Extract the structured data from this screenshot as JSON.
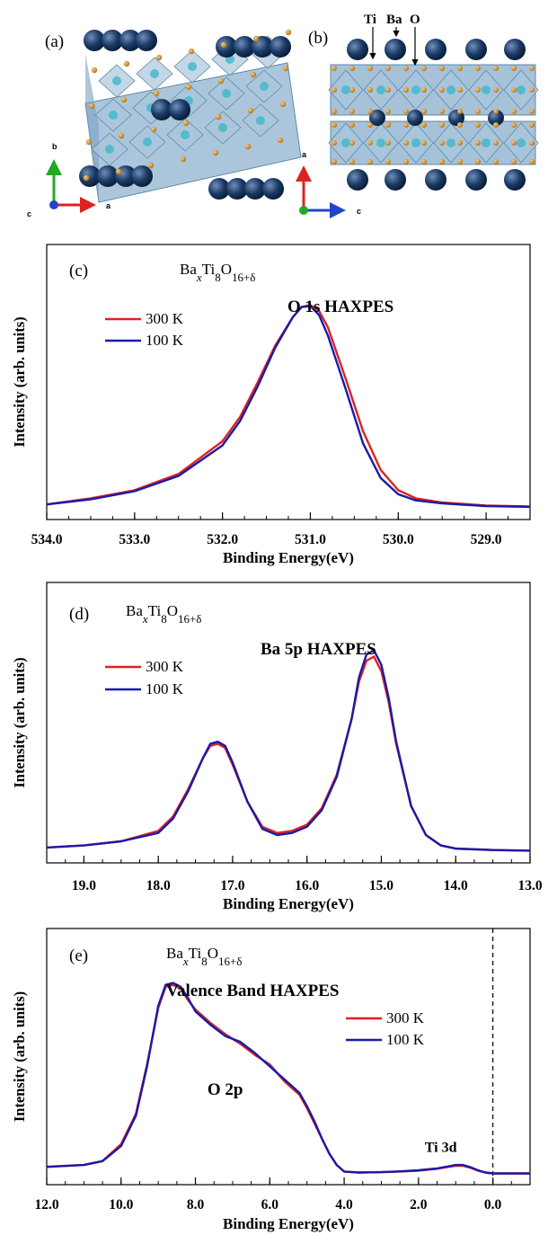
{
  "structure": {
    "panel_a": {
      "label": "(a)",
      "axes": {
        "b": "b",
        "a": "a",
        "c": "c"
      },
      "colors": {
        "ba": "#1a3a66",
        "ti_octahedra": "#8fb3cf",
        "o": "#c98a2c"
      }
    },
    "panel_b": {
      "label": "(b)",
      "atom_labels": {
        "ti": "Ti",
        "ba": "Ba",
        "o": "O"
      },
      "axes": {
        "a": "a",
        "c": "c"
      }
    }
  },
  "chart_data": [
    {
      "type": "line",
      "panel_label": "(c)",
      "compound": {
        "base": "Ba",
        "x": "x",
        "ti": "Ti",
        "ti_sub": "8",
        "o": "O",
        "o_sub": "16+δ"
      },
      "title": "O 1s HAXPES",
      "xlabel": "Binding Energy(eV)",
      "ylabel": "Intensity (arb. units)",
      "xlim": [
        534.0,
        528.5
      ],
      "x_reversed": true,
      "xticks": [
        "534.0",
        "533.0",
        "532.0",
        "531.0",
        "530.0",
        "529.0"
      ],
      "legend_placement": "upper-left",
      "series": [
        {
          "name": "300 K",
          "color": "#dd2222",
          "x": [
            534.0,
            533.5,
            533.0,
            532.5,
            532.0,
            531.8,
            531.6,
            531.4,
            531.2,
            531.1,
            531.0,
            530.9,
            530.8,
            530.6,
            530.4,
            530.2,
            530.0,
            529.8,
            529.5,
            529.0,
            528.5
          ],
          "y": [
            0.02,
            0.05,
            0.09,
            0.17,
            0.33,
            0.45,
            0.62,
            0.8,
            0.94,
            0.99,
            1.0,
            0.97,
            0.89,
            0.64,
            0.38,
            0.19,
            0.09,
            0.05,
            0.03,
            0.015,
            0.01
          ]
        },
        {
          "name": "100 K",
          "color": "#1a1aa8",
          "x": [
            534.0,
            533.5,
            533.0,
            532.5,
            532.0,
            531.8,
            531.6,
            531.4,
            531.2,
            531.1,
            531.0,
            530.9,
            530.8,
            530.6,
            530.4,
            530.2,
            530.0,
            529.8,
            529.5,
            529.0,
            528.5
          ],
          "y": [
            0.02,
            0.045,
            0.085,
            0.16,
            0.31,
            0.43,
            0.6,
            0.79,
            0.94,
            0.99,
            0.995,
            0.95,
            0.85,
            0.59,
            0.32,
            0.15,
            0.07,
            0.04,
            0.025,
            0.012,
            0.008
          ]
        }
      ]
    },
    {
      "type": "line",
      "panel_label": "(d)",
      "compound": {
        "base": "Ba",
        "x": "x",
        "ti": "Ti",
        "ti_sub": "8",
        "o": "O",
        "o_sub": "16+δ"
      },
      "title": "Ba 5p HAXPES",
      "xlabel": "Binding Energy(eV)",
      "ylabel": "Intensity (arb. units)",
      "xlim": [
        19.5,
        13.0
      ],
      "x_reversed": true,
      "xticks": [
        "19.0",
        "18.0",
        "17.0",
        "16.0",
        "15.0",
        "14.0",
        "13.0"
      ],
      "legend_placement": "upper-left",
      "series": [
        {
          "name": "300 K",
          "color": "#dd2222",
          "x": [
            19.5,
            19.0,
            18.5,
            18.0,
            17.8,
            17.6,
            17.4,
            17.3,
            17.2,
            17.1,
            17.0,
            16.8,
            16.6,
            16.4,
            16.2,
            16.0,
            15.8,
            15.6,
            15.4,
            15.3,
            15.2,
            15.1,
            15.0,
            14.9,
            14.8,
            14.6,
            14.4,
            14.2,
            14.0,
            13.5,
            13.0
          ],
          "y": [
            0.02,
            0.03,
            0.05,
            0.1,
            0.17,
            0.3,
            0.45,
            0.51,
            0.52,
            0.5,
            0.42,
            0.24,
            0.12,
            0.09,
            0.1,
            0.13,
            0.21,
            0.37,
            0.64,
            0.82,
            0.92,
            0.94,
            0.87,
            0.72,
            0.52,
            0.22,
            0.08,
            0.03,
            0.015,
            0.008,
            0.005
          ]
        },
        {
          "name": "100 K",
          "color": "#1a1aa8",
          "x": [
            19.5,
            19.0,
            18.5,
            18.0,
            17.8,
            17.6,
            17.4,
            17.3,
            17.2,
            17.1,
            17.0,
            16.8,
            16.6,
            16.4,
            16.2,
            16.0,
            15.8,
            15.6,
            15.4,
            15.3,
            15.2,
            15.1,
            15.0,
            14.9,
            14.8,
            14.6,
            14.4,
            14.2,
            14.0,
            13.5,
            13.0
          ],
          "y": [
            0.02,
            0.03,
            0.05,
            0.09,
            0.16,
            0.29,
            0.45,
            0.52,
            0.53,
            0.51,
            0.43,
            0.24,
            0.11,
            0.08,
            0.09,
            0.12,
            0.2,
            0.36,
            0.64,
            0.84,
            0.95,
            0.97,
            0.9,
            0.74,
            0.53,
            0.22,
            0.08,
            0.03,
            0.015,
            0.008,
            0.005
          ]
        }
      ]
    },
    {
      "type": "line",
      "panel_label": "(e)",
      "compound": {
        "base": "Ba",
        "x": "x",
        "ti": "Ti",
        "ti_sub": "8",
        "o": "O",
        "o_sub": "16+δ"
      },
      "title": "Valence Band HAXPES",
      "xlabel": "Binding Energy(eV)",
      "ylabel": "Intensity (arb. units)",
      "xlim": [
        12.0,
        -1.0
      ],
      "x_reversed": true,
      "xticks": [
        "12.0",
        "10.0",
        "8.0",
        "6.0",
        "4.0",
        "2.0",
        "0.0"
      ],
      "fermi_level": 0.0,
      "annotations": [
        {
          "text": "O 2p",
          "x": 7.2
        },
        {
          "text": "Ti 3d",
          "x": 1.4
        }
      ],
      "legend_placement": "upper-right",
      "series": [
        {
          "name": "300 K",
          "color": "#dd2222",
          "x": [
            12.0,
            11.0,
            10.5,
            10.0,
            9.6,
            9.3,
            9.0,
            8.8,
            8.6,
            8.4,
            8.2,
            8.0,
            7.6,
            7.2,
            6.8,
            6.4,
            6.0,
            5.6,
            5.2,
            5.0,
            4.8,
            4.6,
            4.4,
            4.2,
            4.0,
            3.6,
            3.0,
            2.5,
            2.0,
            1.5,
            1.2,
            1.0,
            0.8,
            0.6,
            0.4,
            0.2,
            0.0,
            -0.5,
            -1.0
          ],
          "y": [
            0.04,
            0.05,
            0.07,
            0.16,
            0.32,
            0.58,
            0.88,
            0.99,
            1.0,
            0.98,
            0.92,
            0.87,
            0.8,
            0.74,
            0.69,
            0.63,
            0.58,
            0.49,
            0.42,
            0.35,
            0.27,
            0.19,
            0.11,
            0.05,
            0.015,
            0.01,
            0.012,
            0.015,
            0.02,
            0.03,
            0.04,
            0.045,
            0.045,
            0.035,
            0.02,
            0.01,
            0.005,
            0.005,
            0.005
          ]
        },
        {
          "name": "100 K",
          "color": "#1a1aa8",
          "x": [
            12.0,
            11.0,
            10.5,
            10.0,
            9.6,
            9.3,
            9.0,
            8.8,
            8.6,
            8.4,
            8.2,
            8.0,
            7.6,
            7.2,
            6.8,
            6.4,
            6.0,
            5.6,
            5.2,
            5.0,
            4.8,
            4.6,
            4.4,
            4.2,
            4.0,
            3.6,
            3.0,
            2.5,
            2.0,
            1.5,
            1.2,
            1.0,
            0.8,
            0.6,
            0.4,
            0.2,
            0.0,
            -0.5,
            -1.0
          ],
          "y": [
            0.04,
            0.05,
            0.07,
            0.15,
            0.31,
            0.57,
            0.89,
            1.0,
            1.01,
            0.99,
            0.93,
            0.86,
            0.79,
            0.73,
            0.7,
            0.64,
            0.57,
            0.5,
            0.43,
            0.36,
            0.28,
            0.19,
            0.11,
            0.05,
            0.015,
            0.01,
            0.012,
            0.016,
            0.022,
            0.032,
            0.042,
            0.05,
            0.05,
            0.038,
            0.022,
            0.01,
            0.005,
            0.005,
            0.005
          ]
        }
      ]
    }
  ]
}
